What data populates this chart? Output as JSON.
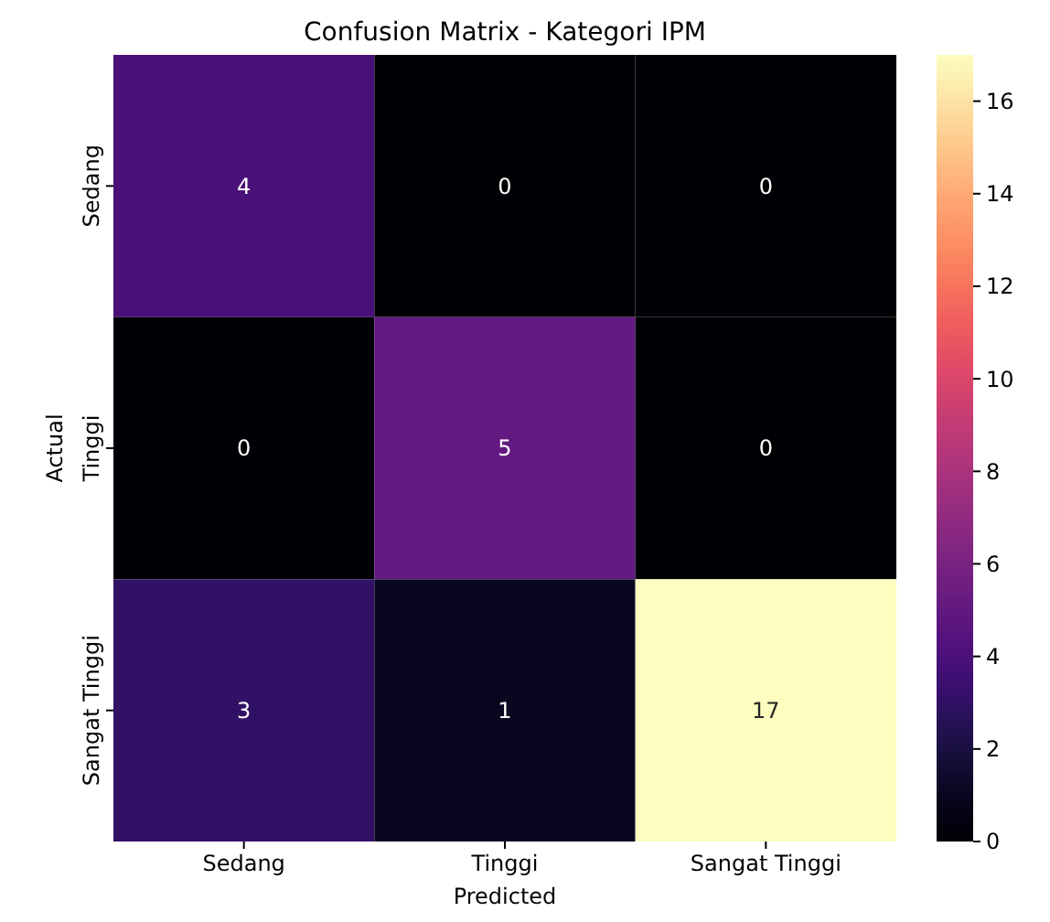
{
  "chart_data": {
    "type": "heatmap",
    "title": "Confusion Matrix - Kategori IPM",
    "xlabel": "Predicted",
    "ylabel": "Actual",
    "categories": [
      "Sedang",
      "Tinggi",
      "Sangat Tinggi"
    ],
    "y_categories": [
      "Sedang",
      "Tinggi",
      "Sangat Tinggi"
    ],
    "cells": [
      [
        4,
        0,
        0
      ],
      [
        0,
        5,
        0
      ],
      [
        3,
        1,
        17
      ]
    ],
    "data_labels": true,
    "clim": [
      0,
      17
    ],
    "cticks": [
      0,
      2,
      4,
      6,
      8,
      10,
      12,
      14,
      16
    ]
  }
}
